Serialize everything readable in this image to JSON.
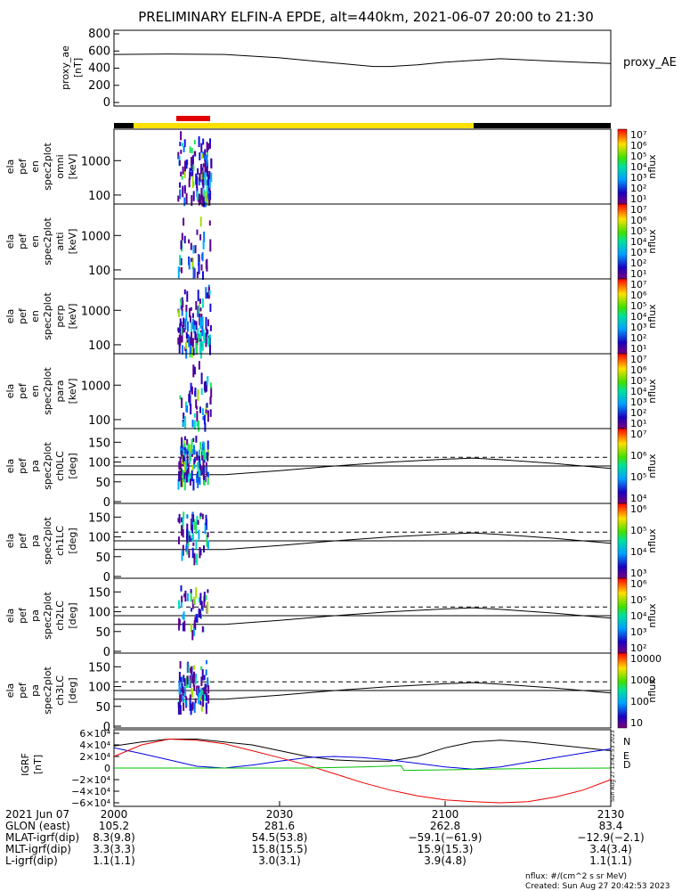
{
  "title": "PRELIMINARY ELFIN-A EPDE, alt=440km, 2021-06-07 20:00 to 21:30",
  "colors": {
    "bar_science": "#ffe000",
    "bar_off": "#000000",
    "bar_marker": "#e00000",
    "igrf_n": "#000000",
    "igrf_e": "#0000e0",
    "igrf_d": "#ee0000",
    "igrf_extra": "#00c000"
  },
  "chart_data": [
    {
      "type": "line",
      "panel": "proxy_ae",
      "ylabel": [
        "proxy_ae",
        "[nT]"
      ],
      "legend": "proxy_AE",
      "ylim": [
        0,
        800
      ],
      "yticks": [
        "800",
        "600",
        "400",
        "200",
        "0"
      ],
      "x": [
        0,
        10,
        20,
        30,
        40,
        47,
        50,
        55,
        60,
        70,
        80,
        90
      ],
      "values": [
        560,
        565,
        560,
        520,
        460,
        420,
        420,
        440,
        470,
        510,
        480,
        455
      ]
    },
    {
      "type": "heatmap",
      "panel": "spec2plot_omni",
      "ylabel": [
        "ela",
        "pef",
        "en",
        "spec2plot",
        "omni",
        "[keV]"
      ],
      "yscale": "log",
      "yticks": [
        "1000",
        "100"
      ],
      "colorbar": {
        "label": "nflux",
        "ticks": [
          "10⁷",
          "10⁶",
          "10⁵",
          "10⁴",
          "10³",
          "10²",
          "10¹"
        ]
      }
    },
    {
      "type": "heatmap",
      "panel": "spec2plot_anti",
      "ylabel": [
        "ela",
        "pef",
        "en",
        "spec2plot",
        "anti",
        "[keV]"
      ],
      "yscale": "log",
      "yticks": [
        "1000",
        "100"
      ],
      "colorbar": {
        "label": "nflux",
        "ticks": [
          "10⁷",
          "10⁶",
          "10⁵",
          "10⁴",
          "10³",
          "10²",
          "10¹"
        ]
      }
    },
    {
      "type": "heatmap",
      "panel": "spec2plot_perp",
      "ylabel": [
        "ela",
        "pef",
        "en",
        "spec2plot",
        "perp",
        "[keV]"
      ],
      "yscale": "log",
      "yticks": [
        "1000",
        "100"
      ],
      "colorbar": {
        "label": "nflux",
        "ticks": [
          "10⁷",
          "10⁶",
          "10⁵",
          "10⁴",
          "10³",
          "10²",
          "10¹"
        ]
      }
    },
    {
      "type": "heatmap",
      "panel": "spec2plot_para",
      "ylabel": [
        "ela",
        "pef",
        "en",
        "spec2plot",
        "para",
        "[keV]"
      ],
      "yscale": "log",
      "yticks": [
        "1000",
        "100"
      ],
      "colorbar": {
        "label": "nflux",
        "ticks": [
          "10⁷",
          "10⁶",
          "10⁵",
          "10⁴",
          "10³",
          "10²",
          "10¹"
        ]
      }
    },
    {
      "type": "heatmap",
      "panel": "spec2plot_ch0LC",
      "ylabel": [
        "ela",
        "pef",
        "pa",
        "spec2plot",
        "ch0LC",
        "[deg]"
      ],
      "ylim": [
        0,
        180
      ],
      "yticks": [
        "150",
        "100",
        "50",
        "0"
      ],
      "colorbar": {
        "label": "nflux",
        "ticks": [
          "10⁷",
          "10⁶",
          "10⁵",
          "10⁴"
        ]
      }
    },
    {
      "type": "heatmap",
      "panel": "spec2plot_ch1LC",
      "ylabel": [
        "ela",
        "pef",
        "pa",
        "spec2plot",
        "ch1LC",
        "[deg]"
      ],
      "ylim": [
        0,
        180
      ],
      "yticks": [
        "150",
        "100",
        "50",
        "0"
      ],
      "colorbar": {
        "label": "nflux",
        "ticks": [
          "10⁶",
          "10⁵",
          "10⁴",
          "10³"
        ]
      }
    },
    {
      "type": "heatmap",
      "panel": "spec2plot_ch2LC",
      "ylabel": [
        "ela",
        "pef",
        "pa",
        "spec2plot",
        "ch2LC",
        "[deg]"
      ],
      "ylim": [
        0,
        180
      ],
      "yticks": [
        "150",
        "100",
        "50",
        "0"
      ],
      "colorbar": {
        "label": "nflux",
        "ticks": [
          "10⁶",
          "10⁵",
          "10⁴",
          "10³",
          "10²"
        ]
      }
    },
    {
      "type": "heatmap",
      "panel": "spec2plot_ch3LC",
      "ylabel": [
        "ela",
        "pef",
        "pa",
        "spec2plot",
        "ch3LC",
        "[deg]"
      ],
      "ylim": [
        0,
        180
      ],
      "yticks": [
        "150",
        "100",
        "50",
        "0"
      ],
      "colorbar": {
        "label": "nflux",
        "ticks": [
          "10000",
          "1000",
          "100",
          "10"
        ]
      }
    },
    {
      "type": "line",
      "panel": "igrf",
      "ylabel": [
        "IGRF",
        "[nT]"
      ],
      "ylim": [
        -60000,
        60000
      ],
      "yticks": [
        "6×10⁴",
        "4×10⁴",
        "2×10⁴",
        "0",
        "−2×10⁴",
        "−4×10⁴",
        "−6×10⁴"
      ],
      "legend": [
        "N",
        "E",
        "D"
      ],
      "series": [
        {
          "name": "N",
          "x": [
            0,
            5,
            10,
            15,
            20,
            25,
            30,
            35,
            40,
            45,
            50,
            55,
            60,
            65,
            70,
            75,
            80,
            85,
            90
          ],
          "values": [
            38000,
            45000,
            50000,
            50000,
            45000,
            40000,
            30000,
            20000,
            14000,
            12000,
            12000,
            20000,
            35000,
            45000,
            48000,
            45000,
            40000,
            35000,
            30000
          ]
        },
        {
          "name": "E",
          "x": [
            0,
            5,
            10,
            15,
            20,
            25,
            30,
            35,
            40,
            45,
            50,
            55,
            60,
            65,
            70,
            75,
            80,
            85,
            90
          ],
          "values": [
            35000,
            25000,
            14000,
            3000,
            0,
            5000,
            12000,
            18000,
            20000,
            18000,
            14000,
            8000,
            2000,
            -2000,
            2000,
            10000,
            18000,
            26000,
            33000
          ]
        },
        {
          "name": "D",
          "x": [
            0,
            5,
            10,
            15,
            20,
            25,
            30,
            35,
            40,
            45,
            50,
            55,
            60,
            65,
            70,
            75,
            80,
            85,
            90
          ],
          "values": [
            20000,
            40000,
            50000,
            48000,
            42000,
            30000,
            18000,
            5000,
            -10000,
            -25000,
            -38000,
            -48000,
            -55000,
            -58000,
            -60000,
            -58000,
            -50000,
            -38000,
            -20000
          ]
        },
        {
          "name": "",
          "x": [
            0,
            5,
            10,
            15,
            20,
            25,
            30,
            35,
            40,
            45,
            52,
            52.5,
            60,
            70,
            80,
            90
          ],
          "values": [
            0,
            0,
            0,
            0,
            0,
            0,
            0,
            0,
            1000,
            2000,
            4000,
            -4000,
            -3000,
            -1500,
            -500,
            0
          ]
        }
      ]
    }
  ],
  "time_axis": {
    "ticks": [
      {
        "date": "2021 Jun 07",
        "label": "2000",
        "glon": "105.2",
        "mlat": "8.3(9.8)",
        "mlt": "3.3(3.3)",
        "l": "1.1(1.1)"
      },
      {
        "label": "2030",
        "glon": "281.6",
        "mlat": "54.5(53.8)",
        "mlt": "15.8(15.5)",
        "l": "3.0(3.1)"
      },
      {
        "label": "2100",
        "glon": "262.8",
        "mlat": "−59.1(−61.9)",
        "mlt": "15.9(15.3)",
        "l": "3.9(4.8)"
      },
      {
        "label": "2130",
        "glon": "83.4",
        "mlat": "−12.9(−2.1)",
        "mlt": "3.4(3.4)",
        "l": "1.1(1.1)"
      }
    ],
    "row_labels": [
      "GLON (east)",
      "MLAT-igrf(dip)",
      "MLT-igrf(dip)",
      "L-igrf(dip)"
    ]
  },
  "footer": {
    "units": "nflux: #/(cm^2 s sr MeV)",
    "created": "Created: Sun Aug 27 20:42:53 2023",
    "stamp": "Sun Aug 27 13:42:53 2023"
  }
}
